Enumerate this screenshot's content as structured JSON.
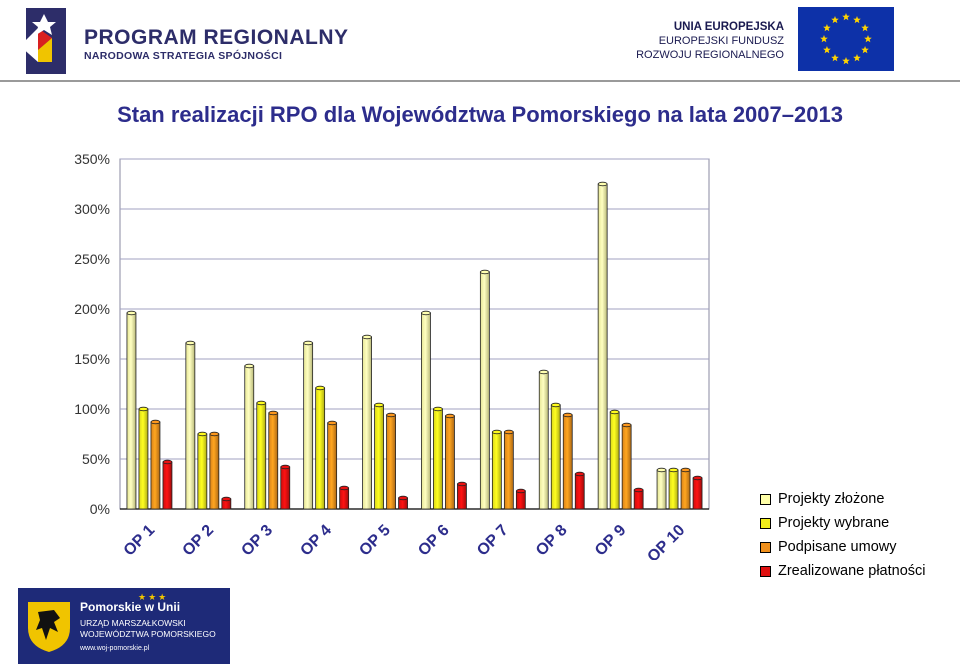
{
  "header": {
    "program_title": "PROGRAM REGIONALNY",
    "program_subtitle": "NARODOWA STRATEGIA SPÓJNOŚCI",
    "eu_line1": "UNIA EUROPEJSKA",
    "eu_line2": "EUROPEJSKI FUNDUSZ",
    "eu_line3": "ROZWOJU REGIONALNEGO"
  },
  "colors": {
    "brand_navy": "#2d2d69",
    "title_blue": "#2d2d8c",
    "eu_blue": "#0d31a8",
    "eu_star": "#ffd400",
    "footer_navy": "#1e2a78"
  },
  "chart_data": {
    "type": "bar",
    "title": "Stan realizacji RPO dla Województwa Pomorskiego na lata 2007–2013",
    "categories": [
      "OP 1",
      "OP 2",
      "OP 3",
      "OP 4",
      "OP 5",
      "OP 6",
      "OP 7",
      "OP 8",
      "OP 9",
      "OP 10"
    ],
    "series": [
      {
        "name": "Projekty złożone",
        "color": "#ffffa8",
        "values": [
          196,
          166,
          143,
          166,
          172,
          196,
          237,
          137,
          325,
          39
        ]
      },
      {
        "name": "Projekty wybrane",
        "color": "#f2ee1c",
        "values": [
          100,
          75,
          106,
          121,
          104,
          100,
          77,
          104,
          97,
          39
        ]
      },
      {
        "name": "Podpisane umowy",
        "color": "#f0901c",
        "values": [
          87,
          75,
          96,
          86,
          94,
          93,
          77,
          94,
          84,
          39
        ]
      },
      {
        "name": "Zrealizowane płatności",
        "color": "#e01010",
        "values": [
          47,
          10,
          42,
          21,
          11,
          25,
          18,
          35,
          19,
          31
        ]
      }
    ],
    "y_ticks": [
      "0%",
      "50%",
      "100%",
      "150%",
      "200%",
      "250%",
      "300%",
      "350%"
    ],
    "ylim": [
      0,
      350
    ],
    "y_unit": "%",
    "grid": true,
    "legend_position": "right"
  },
  "footer": {
    "brand": "Pomorskie w Unii",
    "line1": "URZĄD MARSZAŁKOWSKI",
    "line2": "WOJEWÓDZTWA POMORSKIEGO",
    "url": "www.woj-pomorskie.pl"
  }
}
